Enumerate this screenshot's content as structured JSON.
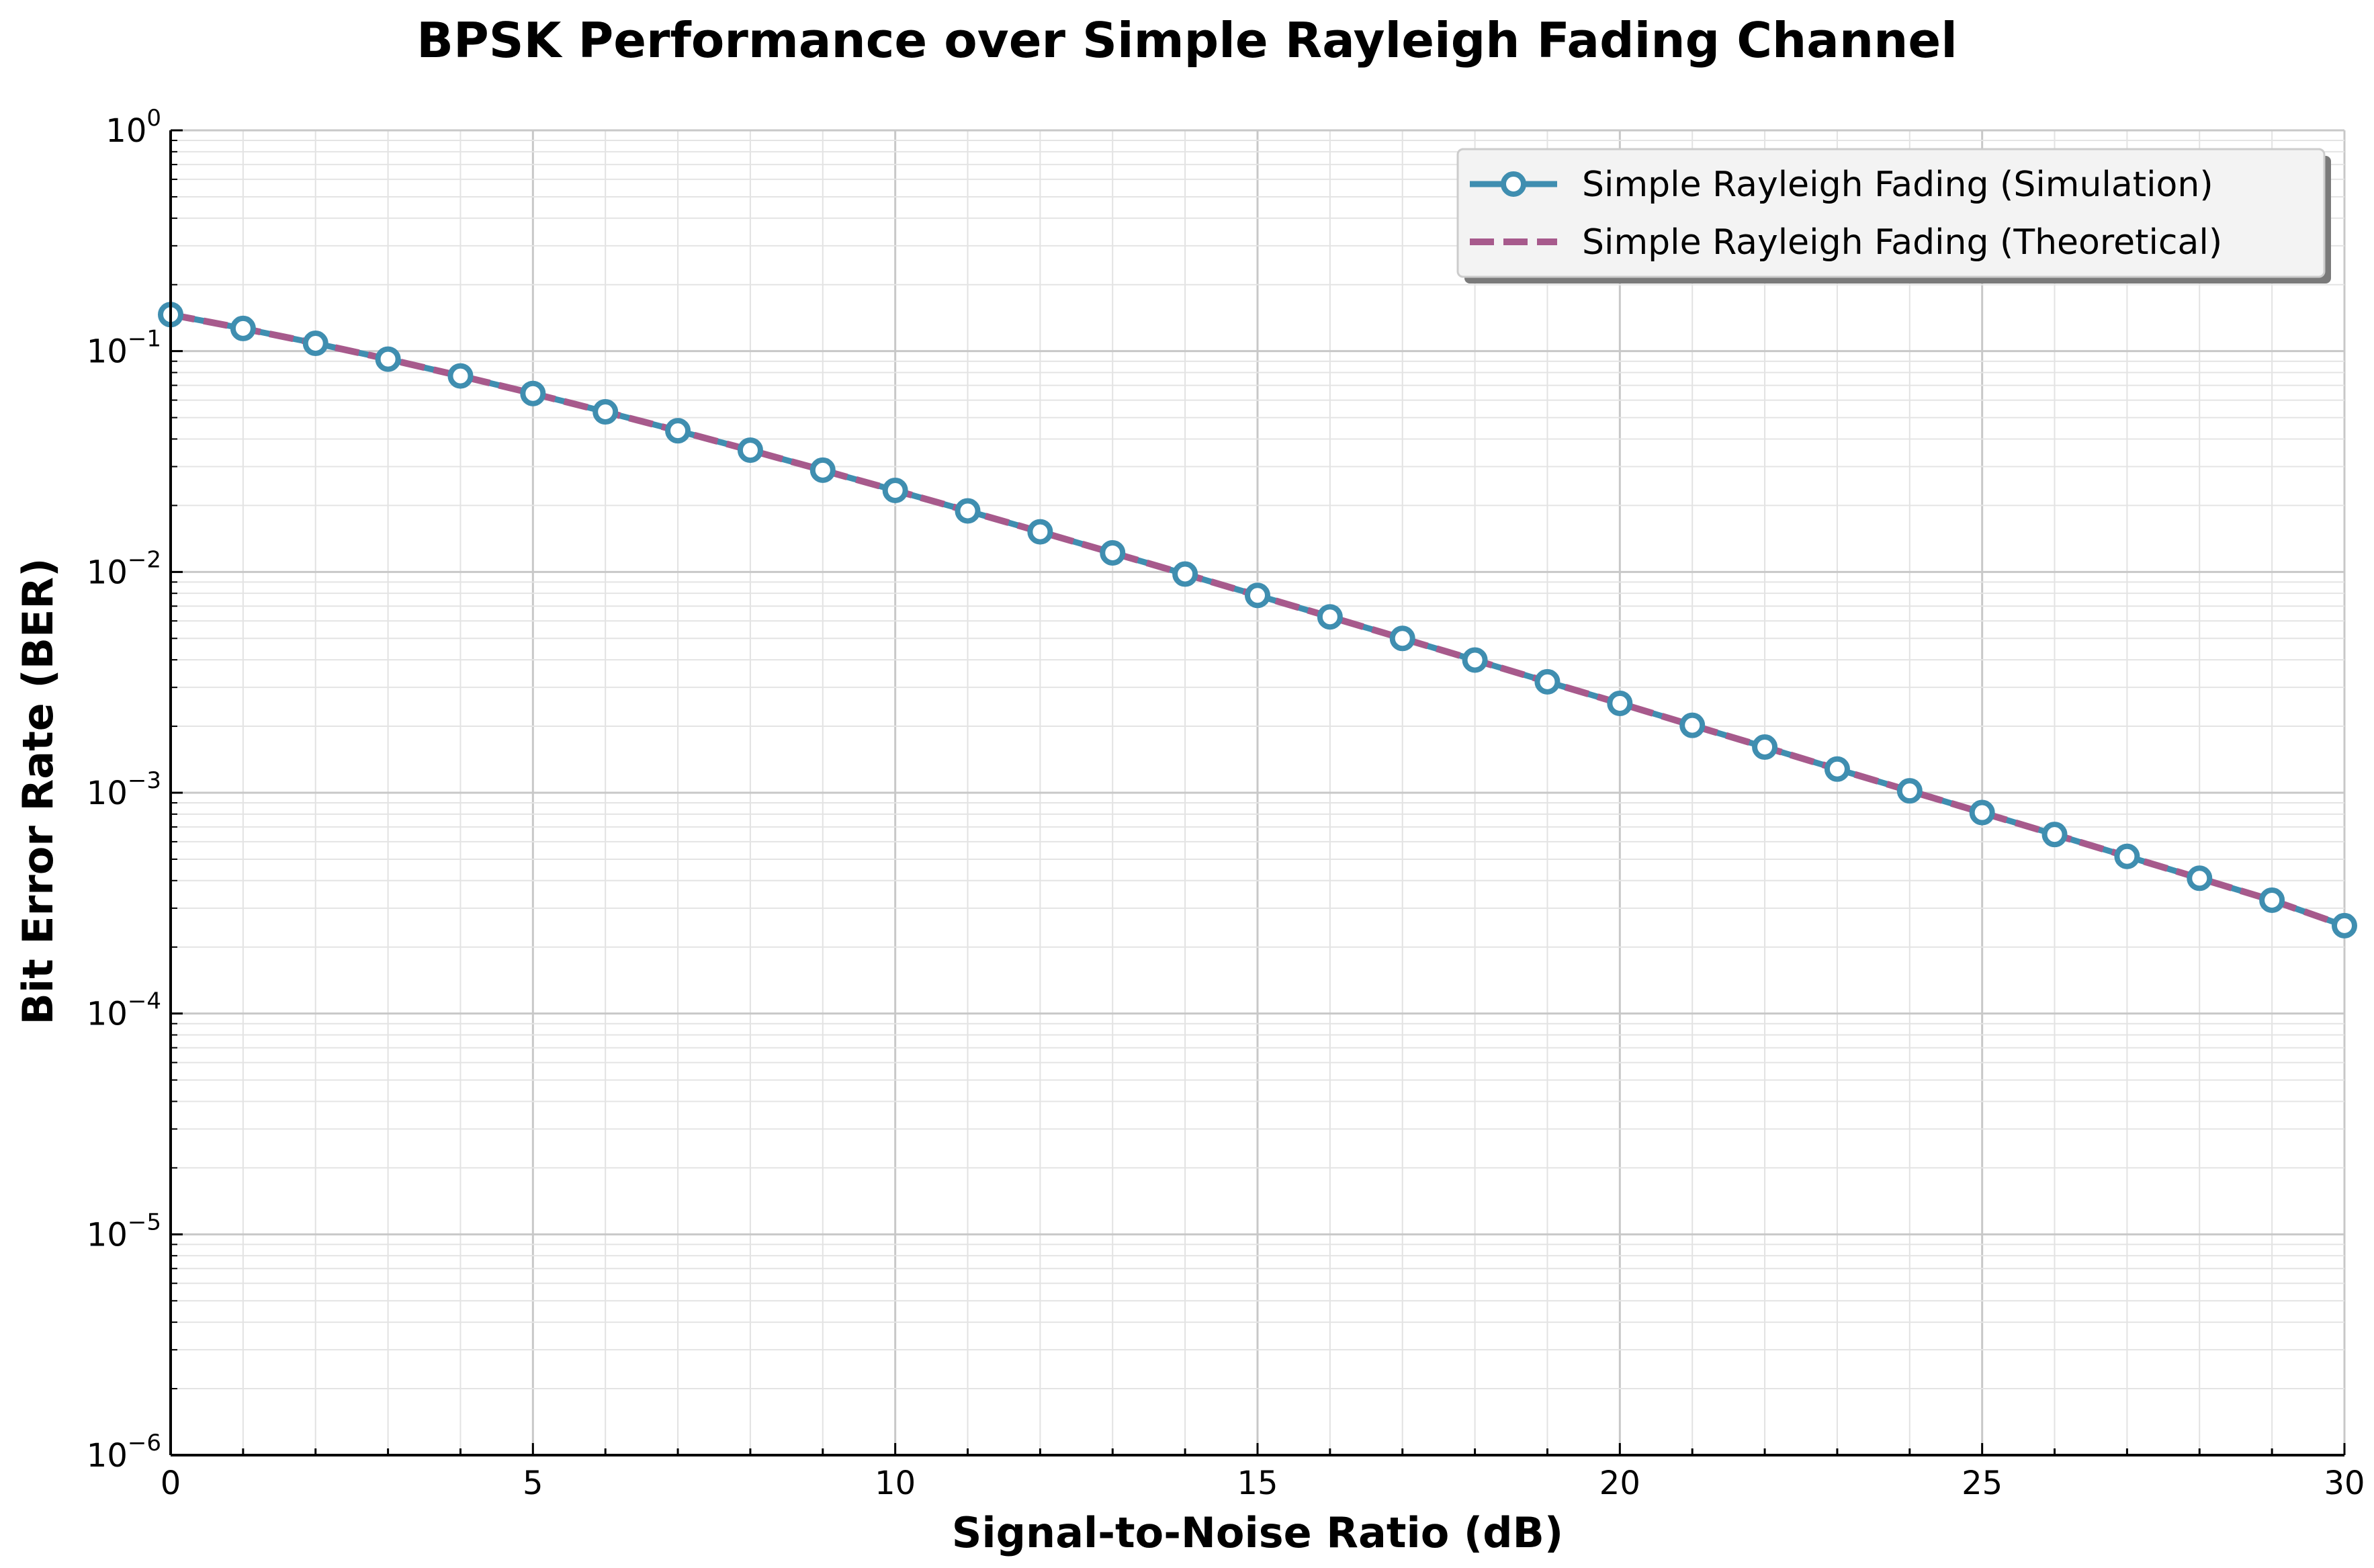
{
  "chart_data": {
    "type": "line",
    "title": "BPSK Performance over Simple Rayleigh Fading Channel",
    "xlabel": "Signal-to-Noise Ratio (dB)",
    "ylabel": "Bit Error Rate (BER)",
    "xlim": [
      0,
      30
    ],
    "ylim": [
      1e-06,
      1
    ],
    "yscale": "log",
    "grid": true,
    "legend_position": "top-right",
    "x_ticks": [
      0,
      5,
      10,
      15,
      20,
      25,
      30
    ],
    "y_ticks": [
      {
        "base": "10",
        "exp": "0",
        "value": 1
      },
      {
        "base": "10",
        "exp": "−1",
        "value": 0.1
      },
      {
        "base": "10",
        "exp": "−2",
        "value": 0.01
      },
      {
        "base": "10",
        "exp": "−3",
        "value": 0.001
      },
      {
        "base": "10",
        "exp": "−4",
        "value": 0.0001
      },
      {
        "base": "10",
        "exp": "−5",
        "value": 1e-05
      },
      {
        "base": "10",
        "exp": "−6",
        "value": 1e-06
      }
    ],
    "x": [
      0,
      1,
      2,
      3,
      4,
      5,
      6,
      7,
      8,
      9,
      10,
      11,
      12,
      13,
      14,
      15,
      16,
      17,
      18,
      19,
      20,
      21,
      22,
      23,
      24,
      25,
      26,
      27,
      28,
      29,
      30
    ],
    "series": [
      {
        "name": "Simple Rayleigh Fading (Simulation)",
        "color": "#3f8eb0",
        "style": "solid-with-circle-markers",
        "values": [
          0.1464,
          0.1267,
          0.1085,
          0.092,
          0.0772,
          0.0643,
          0.0531,
          0.0436,
          0.0356,
          0.0289,
          0.0234,
          0.0189,
          0.0152,
          0.0122,
          0.00978,
          0.00783,
          0.00626,
          0.005,
          0.00399,
          0.00318,
          0.00254,
          0.00202,
          0.00161,
          0.00128,
          0.00102,
          0.000813,
          0.000647,
          0.000515,
          0.00041,
          0.000326,
          0.00025
        ]
      },
      {
        "name": "Simple Rayleigh Fading (Theoretical)",
        "color": "#a75a8c",
        "style": "dashed",
        "values": [
          0.1464,
          0.1267,
          0.1085,
          0.092,
          0.0772,
          0.0643,
          0.0531,
          0.0436,
          0.0356,
          0.0289,
          0.0234,
          0.0189,
          0.0152,
          0.0122,
          0.00978,
          0.00783,
          0.00626,
          0.005,
          0.00399,
          0.00318,
          0.00254,
          0.00202,
          0.00161,
          0.00128,
          0.00102,
          0.000813,
          0.000647,
          0.000515,
          0.00041,
          0.000326,
          0.00025
        ]
      }
    ]
  }
}
